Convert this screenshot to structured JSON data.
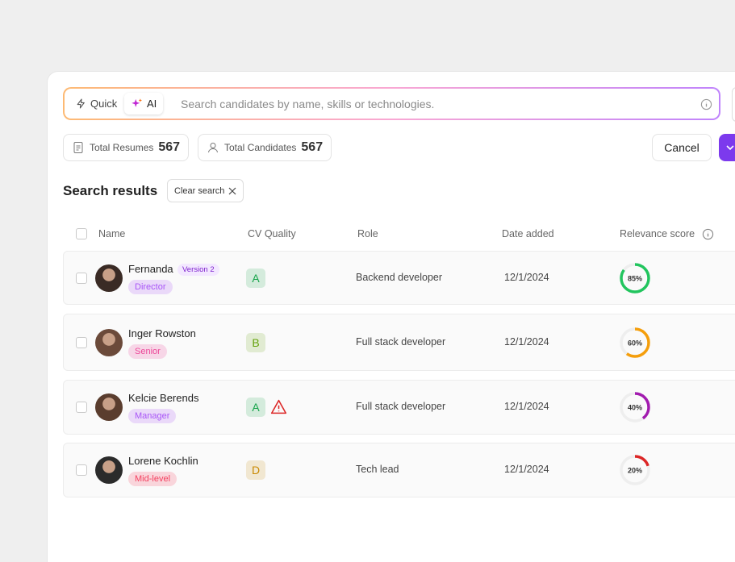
{
  "search": {
    "modes": [
      "Quick",
      "AI"
    ],
    "placeholder": "Search candidates by name, skills or technologies."
  },
  "stats": [
    {
      "label": "Total Resumes",
      "value": 567
    },
    {
      "label": "Total Candidates",
      "value": 567
    }
  ],
  "actions": {
    "cancel": "Cancel"
  },
  "results": {
    "title": "Search results",
    "clear": "Clear search"
  },
  "table": {
    "columns": [
      "Name",
      "CV Quality",
      "Role",
      "Date added",
      "Relevance score"
    ],
    "rows": [
      {
        "name": "Fernanda",
        "version": "Version 2",
        "level": "Director",
        "level_color": "#a855f7",
        "quality": "A",
        "quality_color": "#16a34a",
        "warning": false,
        "role": "Backend developer",
        "date": "12/1/2024",
        "score": {
          "value": 85,
          "label": "85%"
        },
        "score_color": "#22c55e"
      },
      {
        "name": "Inger Rowston",
        "level": "Senior",
        "level_color": "#ec4899",
        "quality": "B",
        "quality_color": "#65a30d",
        "warning": false,
        "role": "Full stack developer",
        "date": "12/1/2024",
        "score": {
          "value": 60,
          "label": "60%"
        },
        "score_color": "#f59e0b"
      },
      {
        "name": "Kelcie Berends",
        "level": "Manager",
        "level_color": "#a855f7",
        "quality": "A",
        "quality_color": "#16a34a",
        "warning": true,
        "role": "Full stack developer",
        "date": "12/1/2024",
        "score": {
          "value": 40,
          "label": "40%"
        },
        "score_color": "#a21caf"
      },
      {
        "name": "Lorene Kochlin",
        "level": "Mid-level",
        "level_color": "#f43f5e",
        "quality": "D",
        "quality_color": "#ca8a04",
        "warning": false,
        "role": "Tech lead",
        "date": "12/1/2024",
        "score": {
          "value": 20,
          "label": "20%"
        },
        "score_color": "#dc2626"
      }
    ]
  }
}
